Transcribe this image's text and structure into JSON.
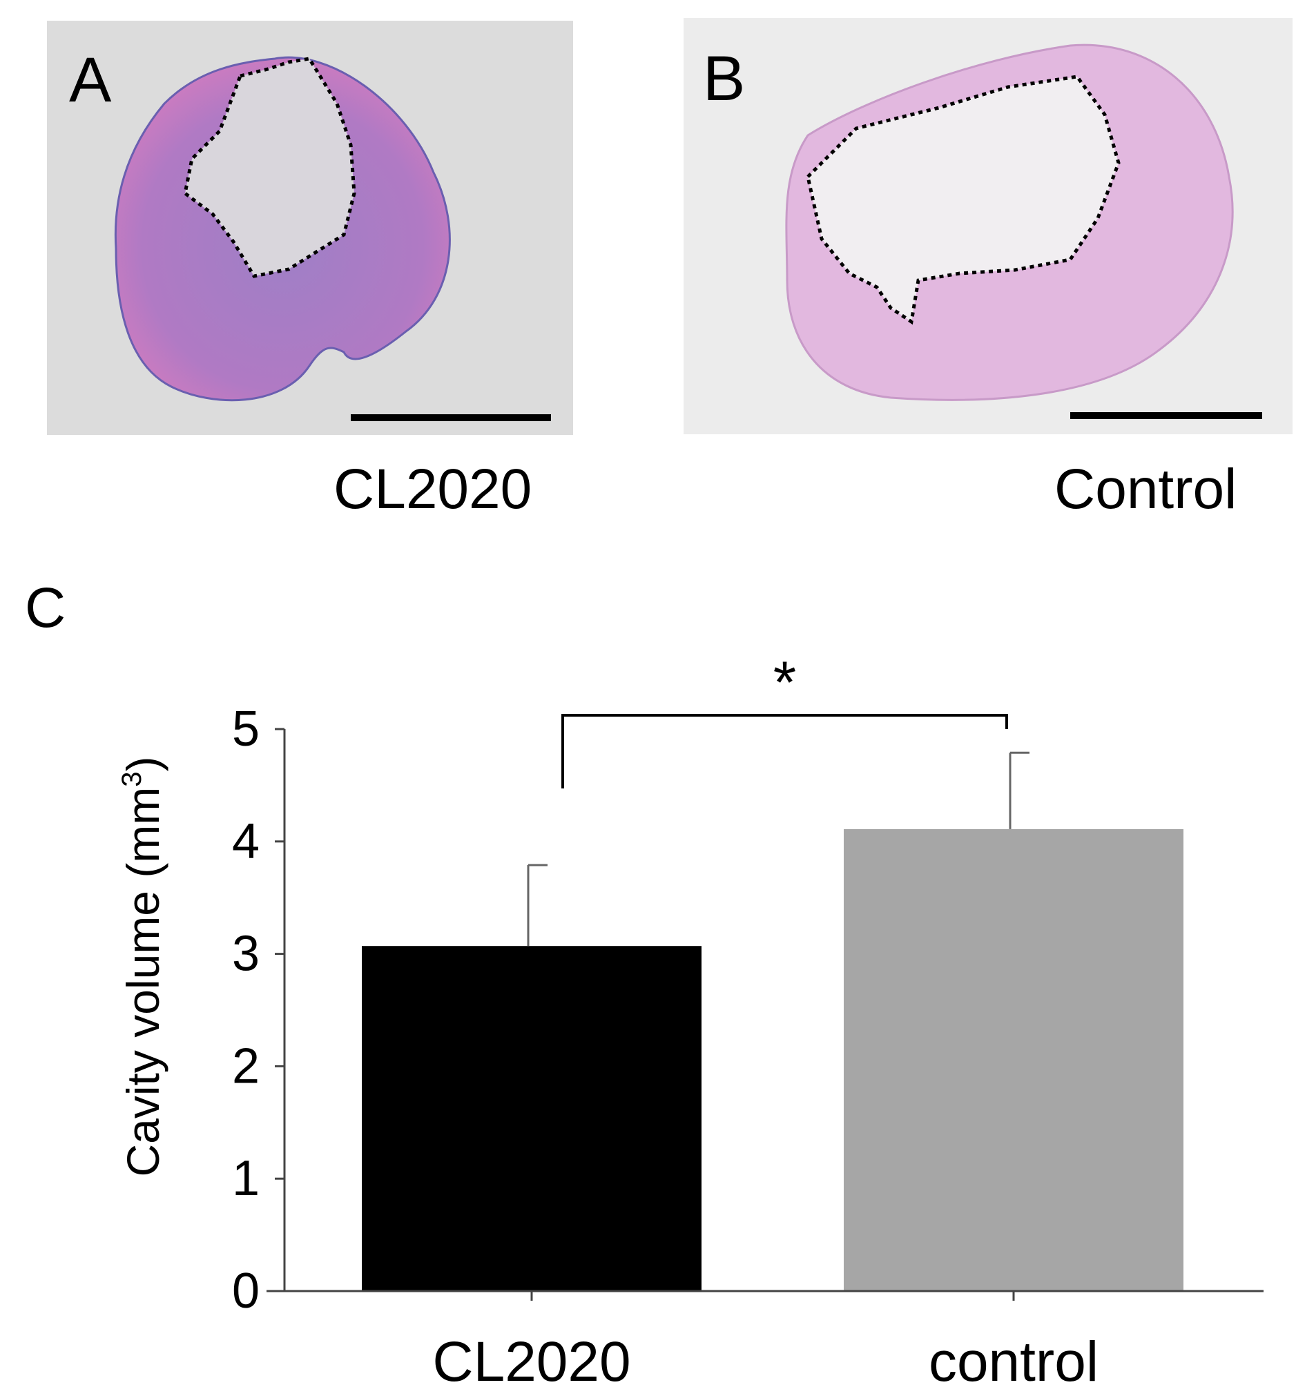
{
  "panels": {
    "a": {
      "letter": "A",
      "caption": "CL2020"
    },
    "b": {
      "letter": "B",
      "caption": "Control"
    },
    "c": {
      "letter": "C"
    }
  },
  "colors": {
    "tissue_a": "#c77bc9",
    "tissue_b": "#e2b8df",
    "bar_cl2020": "#000000",
    "bar_control": "#a6a6a6"
  },
  "chart_data": {
    "type": "bar",
    "categories": [
      "CL2020",
      "control"
    ],
    "values": [
      3.07,
      4.11
    ],
    "errors": [
      0.72,
      0.68
    ],
    "ylabel": "Cavity volume (mm",
    "ylabel_sup": "3",
    "ylabel_close": ")",
    "ylim": [
      0,
      5
    ],
    "yticks": [
      "0",
      "1",
      "2",
      "3",
      "4",
      "5"
    ],
    "significance": "*",
    "grid": false
  }
}
